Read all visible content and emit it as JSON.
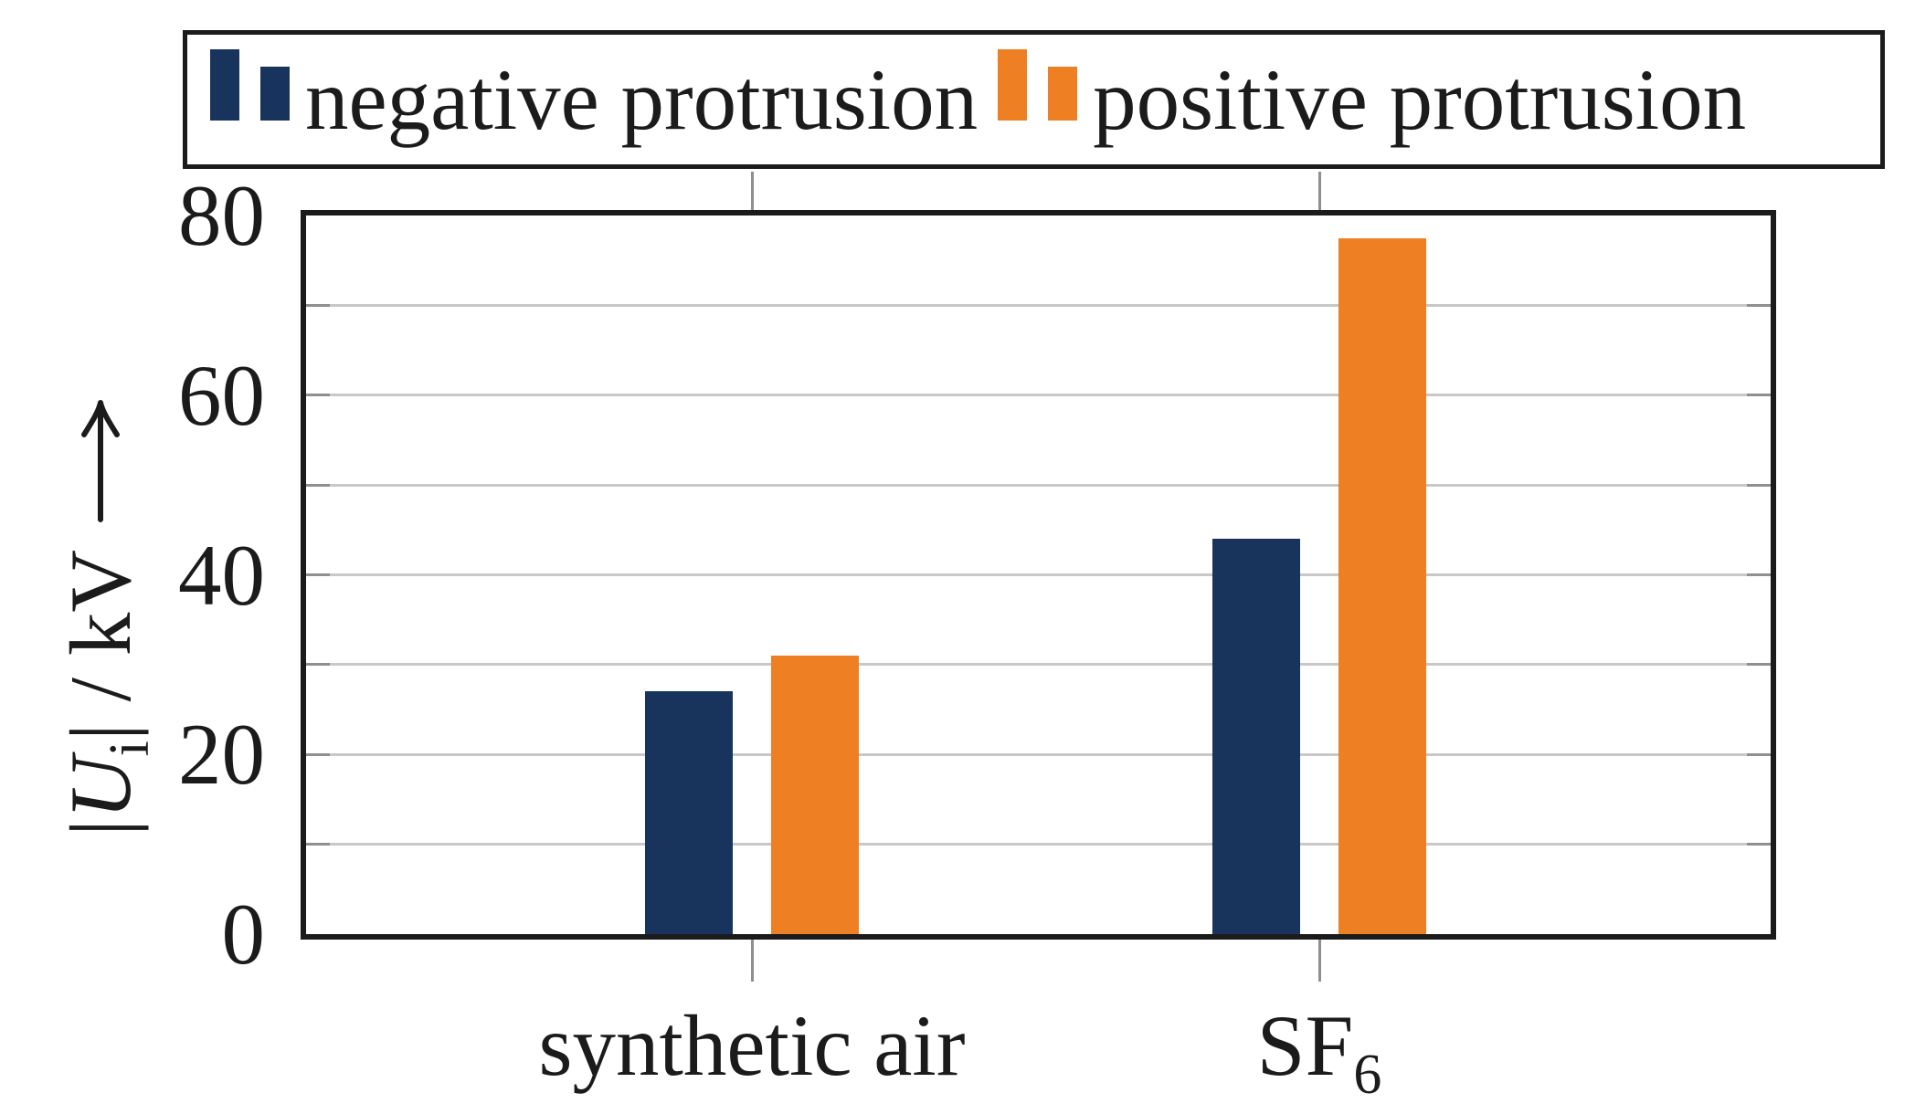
{
  "legend": {
    "items": [
      {
        "label": "negative protrusion",
        "color": "#18335c"
      },
      {
        "label": "positive protrusion",
        "color": "#ee7f23"
      }
    ]
  },
  "y_axis": {
    "label": {
      "open": "|",
      "variable": "U",
      "subscript": "i",
      "close": "|",
      "separator": " / ",
      "unit": "kV"
    },
    "ticks": [
      0,
      20,
      40,
      60,
      80
    ]
  },
  "x_axis": {
    "categories": [
      {
        "text": "synthetic air",
        "subscript": ""
      },
      {
        "text": "SF",
        "subscript": "6"
      }
    ]
  },
  "chart_data": {
    "type": "bar",
    "categories": [
      "synthetic air",
      "SF6"
    ],
    "series": [
      {
        "name": "negative protrusion",
        "color": "#18335c",
        "values": [
          27,
          44
        ]
      },
      {
        "name": "positive protrusion",
        "color": "#ee7f23",
        "values": [
          31,
          77.5
        ]
      }
    ],
    "title": "",
    "xlabel": "",
    "ylabel": "|U_i| / kV",
    "ylim": [
      0,
      80
    ],
    "ytick_interval": 20,
    "grid": true,
    "grid_interval": 10,
    "legend_position": "top"
  },
  "colors": {
    "axis": "#1b1b1b",
    "grid": "#c8c8c8",
    "tick": "#8f8f8f"
  }
}
